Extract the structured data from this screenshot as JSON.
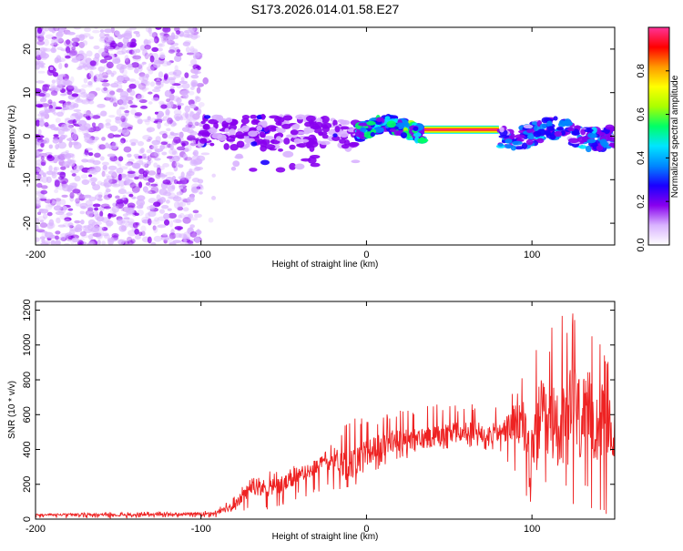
{
  "title": "S173.2026.014.01.58.E27",
  "chart_data": [
    {
      "type": "heatmap",
      "name": "spectrogram",
      "xlabel": "Height of straight line (km)",
      "ylabel": "Frequency (Hz)",
      "xlim": [
        -200,
        150
      ],
      "ylim": [
        -25,
        25
      ],
      "xticks": [
        -200,
        -100,
        0,
        100
      ],
      "xtick_labels": [
        "-200",
        "-100",
        "0",
        "100"
      ],
      "yticks": [
        -20,
        -10,
        0,
        10,
        20
      ],
      "ytick_labels": [
        "-20",
        "-10",
        "0",
        "10",
        "20"
      ],
      "colorbar": {
        "label": "Normalized spectral amplitude",
        "range": [
          0,
          1
        ],
        "ticks": [
          0.0,
          0.2,
          0.4,
          0.6,
          0.8
        ],
        "tick_labels": [
          "0.0",
          "0.2",
          "0.4",
          "0.6",
          "0.8"
        ],
        "colors": [
          "#ffffff",
          "#d9b3ff",
          "#8800ee",
          "#1a00ff",
          "#0088ff",
          "#00e5ff",
          "#00ff66",
          "#aaff00",
          "#ffff00",
          "#ff9900",
          "#ff0000",
          "#ff3399"
        ]
      },
      "regions": [
        {
          "description": "noise",
          "x_range": [
            -200,
            -100
          ],
          "freq_range": [
            -25,
            25
          ],
          "amplitude": 0.05
        },
        {
          "description": "scattered",
          "x_range": [
            -100,
            -5
          ],
          "freq_range": [
            -8,
            6
          ],
          "amplitude": 0.2
        },
        {
          "description": "tone",
          "x_range": [
            -5,
            35
          ],
          "freq_range": [
            -1,
            4
          ],
          "amplitude": 0.5
        },
        {
          "description": "strong tone",
          "x_range": [
            35,
            80
          ],
          "freq_center": 1.5,
          "amplitude": 1.0
        },
        {
          "description": "tone",
          "x_range": [
            80,
            150
          ],
          "freq_range": [
            -3,
            4
          ],
          "amplitude": 0.35
        }
      ]
    },
    {
      "type": "line",
      "name": "snr",
      "xlabel": "Height of straight line (km)",
      "ylabel": "SNR (10 * v/v)",
      "xlim": [
        -200,
        150
      ],
      "ylim": [
        0,
        1250
      ],
      "xticks": [
        -200,
        -100,
        0,
        100
      ],
      "xtick_labels": [
        "-200",
        "-100",
        "0",
        "100"
      ],
      "yticks": [
        0,
        200,
        400,
        600,
        800,
        1000,
        1200
      ],
      "ytick_labels": [
        "0",
        "200",
        "400",
        "600",
        "800",
        "1000",
        "1200"
      ],
      "color": "#ee2222",
      "x": [
        -200,
        -150,
        -100,
        -90,
        -80,
        -75,
        -70,
        -60,
        -50,
        -40,
        -30,
        -20,
        -10,
        0,
        10,
        20,
        30,
        40,
        50,
        60,
        70,
        80,
        85,
        90,
        95,
        100,
        105,
        110,
        115,
        120,
        125,
        130,
        135,
        140,
        145,
        150
      ],
      "y": [
        25,
        25,
        30,
        40,
        70,
        130,
        180,
        180,
        200,
        250,
        300,
        350,
        300,
        380,
        430,
        450,
        450,
        480,
        500,
        500,
        500,
        490,
        520,
        550,
        550,
        300,
        600,
        500,
        550,
        500,
        650,
        550,
        600,
        550,
        550,
        450
      ],
      "y_envelope_max": [
        30,
        40,
        45,
        60,
        130,
        200,
        230,
        280,
        300,
        310,
        340,
        450,
        600,
        580,
        600,
        650,
        660,
        670,
        660,
        680,
        680,
        640,
        700,
        760,
        880,
        1000,
        1060,
        1100,
        1120,
        1220,
        1240,
        1200,
        1150,
        1000,
        1050,
        700
      ],
      "y_envelope_min": [
        5,
        5,
        10,
        10,
        20,
        40,
        60,
        50,
        70,
        120,
        150,
        170,
        170,
        250,
        300,
        330,
        360,
        380,
        400,
        410,
        400,
        390,
        330,
        220,
        130,
        20,
        100,
        80,
        50,
        100,
        20,
        40,
        20,
        30,
        20,
        200
      ]
    }
  ]
}
